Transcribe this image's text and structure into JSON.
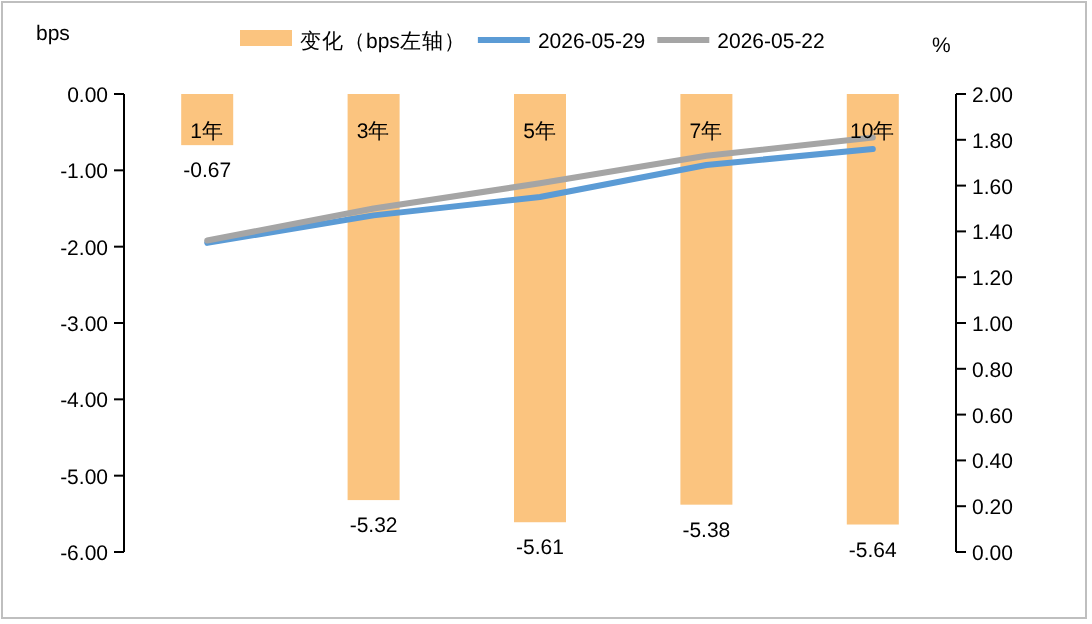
{
  "chart_data": {
    "type": "bar",
    "categories": [
      "1年",
      "3年",
      "5年",
      "7年",
      "10年"
    ],
    "ylabel": "bps",
    "y2label": "%",
    "ylim": [
      -6,
      0
    ],
    "yticks": [
      {
        "value": 0,
        "label": "0.00"
      },
      {
        "value": -1,
        "label": "-1.00"
      },
      {
        "value": -2,
        "label": "-2.00"
      },
      {
        "value": -3,
        "label": "-3.00"
      },
      {
        "value": -4,
        "label": "-4.00"
      },
      {
        "value": -5,
        "label": "-5.00"
      },
      {
        "value": -6,
        "label": "-6.00"
      }
    ],
    "y2lim": [
      0,
      2
    ],
    "y2ticks": [
      {
        "value": 0,
        "label": "0.00"
      },
      {
        "value": 0.2,
        "label": "0.20"
      },
      {
        "value": 0.4,
        "label": "0.40"
      },
      {
        "value": 0.6,
        "label": "0.60"
      },
      {
        "value": 0.8,
        "label": "0.80"
      },
      {
        "value": 1,
        "label": "1.00"
      },
      {
        "value": 1.2,
        "label": "1.20"
      },
      {
        "value": 1.4,
        "label": "1.40"
      },
      {
        "value": 1.6,
        "label": "1.60"
      },
      {
        "value": 1.8,
        "label": "1.80"
      },
      {
        "value": 2,
        "label": "2.00"
      }
    ],
    "series": [
      {
        "name": "变化（bps左轴）",
        "color": "#fbc47f",
        "values": [
          -0.67,
          -5.32,
          -5.61,
          -5.38,
          -5.64
        ],
        "value_labels": [
          "-0.67",
          "-5.32",
          "-5.61",
          "-5.38",
          "-5.64"
        ]
      },
      {
        "name": "2026-05-29",
        "type": "line",
        "axis": "y2",
        "color": "#5b9bd5",
        "values": [
          1.35,
          1.47,
          1.55,
          1.69,
          1.76
        ]
      },
      {
        "name": "2026-05-22",
        "type": "line",
        "axis": "y2",
        "color": "#a5a5a5",
        "values": [
          1.36,
          1.5,
          1.61,
          1.73,
          1.81
        ]
      }
    ],
    "legend": "top",
    "grid": false
  }
}
